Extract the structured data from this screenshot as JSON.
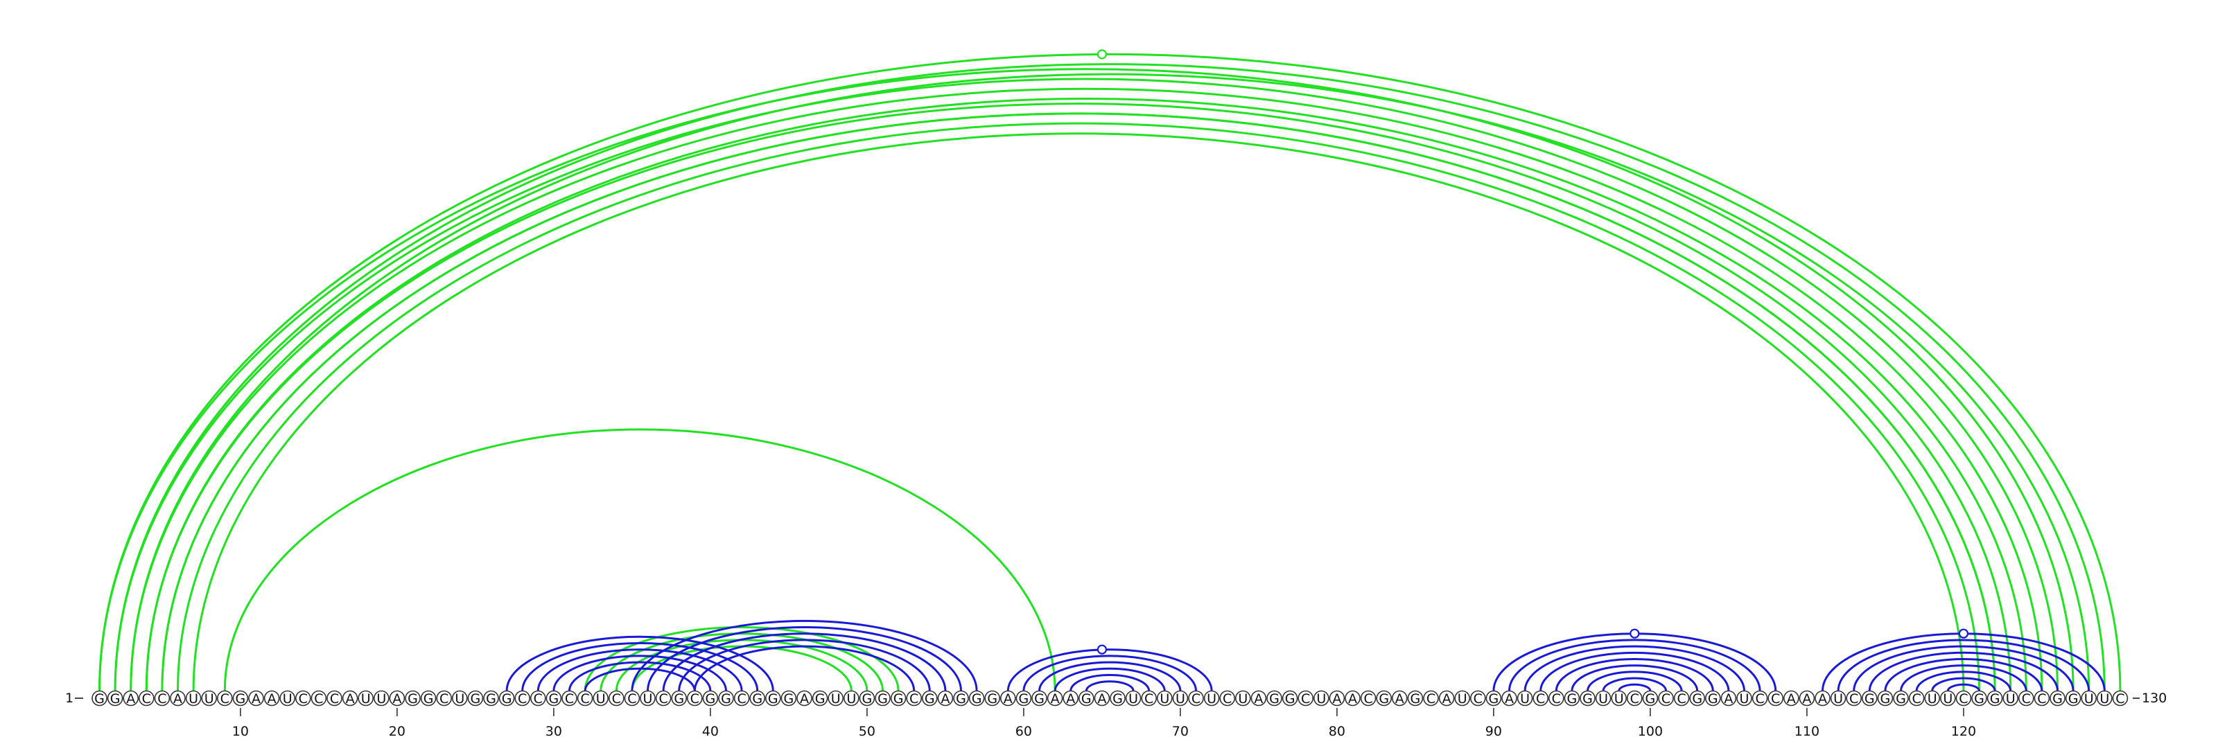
{
  "sequence": "GGACCAUUCGAAUCCCAUUAGGCUGGGCCGCCUCCUCGCGGCGGGAGUUGGGCGAGGGAGGAAGAGUCUUCUCUAGGCUAACGAGCAUCGAUCCGGUUCGCCGGAUCCAAAUCGGGCUUCGGUCCGGUUC",
  "start_label": "1",
  "end_label": "130",
  "tick_labels": [
    "10",
    "20",
    "30",
    "40",
    "50",
    "60",
    "70",
    "80",
    "90",
    "100",
    "110",
    "120"
  ],
  "colors": {
    "pair_set_a": "#22e022",
    "pair_set_b": "#1a1ad6",
    "nucleotide_outline": "#333333"
  },
  "arc_sets": [
    {
      "name": "",
      "color_key": "pair_set_a",
      "pairs": [
        [
          1,
          127
        ],
        [
          2,
          126
        ],
        [
          3,
          125
        ],
        [
          4,
          124
        ],
        [
          5,
          122
        ],
        [
          6,
          121
        ],
        [
          7,
          120
        ],
        [
          1,
          130
        ],
        [
          2,
          129
        ],
        [
          3,
          128
        ],
        [
          4,
          123
        ],
        [
          5,
          122
        ],
        [
          9,
          62
        ],
        [
          32,
          52
        ],
        [
          33,
          51
        ],
        [
          34,
          50
        ],
        [
          35,
          49
        ]
      ],
      "markers": [
        65
      ]
    },
    {
      "name": "",
      "color_key": "pair_set_b",
      "pairs": [
        [
          27,
          44
        ],
        [
          28,
          43
        ],
        [
          29,
          42
        ],
        [
          30,
          41
        ],
        [
          31,
          40
        ],
        [
          32,
          39
        ],
        [
          35,
          57
        ],
        [
          36,
          56
        ],
        [
          37,
          55
        ],
        [
          38,
          54
        ],
        [
          39,
          53
        ],
        [
          59,
          72
        ],
        [
          60,
          71
        ],
        [
          61,
          70
        ],
        [
          62,
          69
        ],
        [
          63,
          68
        ],
        [
          64,
          67
        ],
        [
          90,
          108
        ],
        [
          91,
          107
        ],
        [
          92,
          106
        ],
        [
          93,
          105
        ],
        [
          94,
          104
        ],
        [
          95,
          103
        ],
        [
          96,
          102
        ],
        [
          97,
          101
        ],
        [
          98,
          100
        ],
        [
          111,
          129
        ],
        [
          112,
          128
        ],
        [
          113,
          127
        ],
        [
          114,
          126
        ],
        [
          115,
          125
        ],
        [
          116,
          124
        ],
        [
          117,
          123
        ],
        [
          118,
          122
        ],
        [
          119,
          121
        ]
      ],
      "markers": [
        65,
        99,
        120
      ]
    }
  ]
}
